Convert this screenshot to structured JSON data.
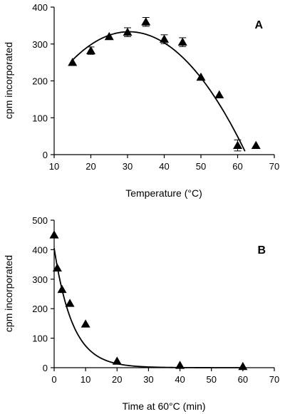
{
  "chart_data": [
    {
      "type": "scatter",
      "panel_label": "A",
      "xlabel": "Temperature (°C)",
      "ylabel": "cpm incorporated",
      "xlim": [
        10,
        70
      ],
      "ylim": [
        0,
        400
      ],
      "xticks": [
        10,
        20,
        30,
        40,
        50,
        60,
        70
      ],
      "yticks": [
        0,
        100,
        200,
        300,
        400
      ],
      "marker": "filled-triangle",
      "series": [
        {
          "x": [
            15,
            20,
            25,
            30,
            35,
            40,
            45,
            50,
            55,
            60,
            65
          ],
          "y": [
            250,
            282,
            320,
            332,
            360,
            313,
            305,
            210,
            162,
            25,
            25
          ],
          "err": [
            0,
            10,
            0,
            12,
            12,
            12,
            12,
            0,
            0,
            15,
            0
          ]
        }
      ],
      "fit": {
        "type": "quadratic",
        "x": [
          15,
          20,
          25,
          30,
          35,
          40,
          45,
          50,
          55,
          60,
          65
        ],
        "y": [
          238,
          298,
          335,
          348,
          340,
          311,
          262,
          196,
          113,
          13,
          -10
        ]
      }
    },
    {
      "type": "scatter",
      "panel_label": "B",
      "xlabel": "Time at 60°C (min)",
      "ylabel": "cpm incorporated",
      "xlim": [
        0,
        70
      ],
      "ylim": [
        0,
        500
      ],
      "xticks": [
        0,
        10,
        20,
        30,
        40,
        50,
        60,
        70
      ],
      "yticks": [
        0,
        100,
        200,
        300,
        400,
        500
      ],
      "marker": "filled-triangle",
      "series": [
        {
          "x": [
            0,
            1,
            2.5,
            5,
            10,
            20,
            40,
            60
          ],
          "y": [
            450,
            338,
            265,
            218,
            148,
            22,
            8,
            4
          ]
        }
      ],
      "fit": {
        "type": "exponential-decay",
        "y0": 405,
        "rate_per_min": 0.17
      }
    }
  ]
}
